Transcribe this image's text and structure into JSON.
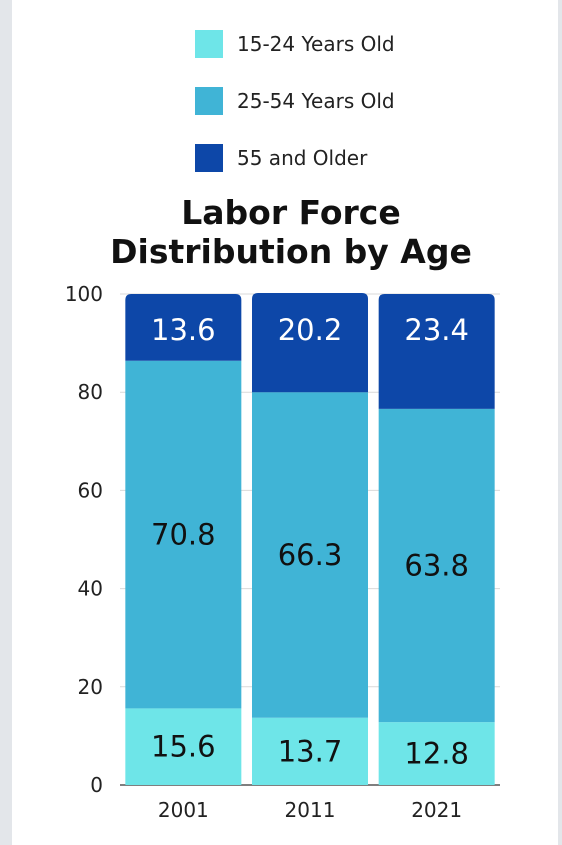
{
  "chart_data": {
    "type": "bar",
    "stacked": true,
    "title": "Labor Force Distribution by Age",
    "title_lines": [
      "Labor Force",
      "Distribution by Age"
    ],
    "categories": [
      "2001",
      "2011",
      "2021"
    ],
    "series": [
      {
        "name": "15-24 Years Old",
        "color": "#6ee5e8",
        "values": [
          15.6,
          13.7,
          12.8
        ]
      },
      {
        "name": "25-54 Years Old",
        "color": "#40b4d6",
        "values": [
          70.8,
          66.3,
          63.8
        ]
      },
      {
        "name": "55 and Older",
        "color": "#0d47a8",
        "values": [
          13.6,
          20.2,
          23.4
        ]
      }
    ],
    "ylim": [
      0,
      100
    ],
    "yticks": [
      0,
      20,
      40,
      60,
      80,
      100
    ],
    "grid": true,
    "legend_position": "top"
  }
}
